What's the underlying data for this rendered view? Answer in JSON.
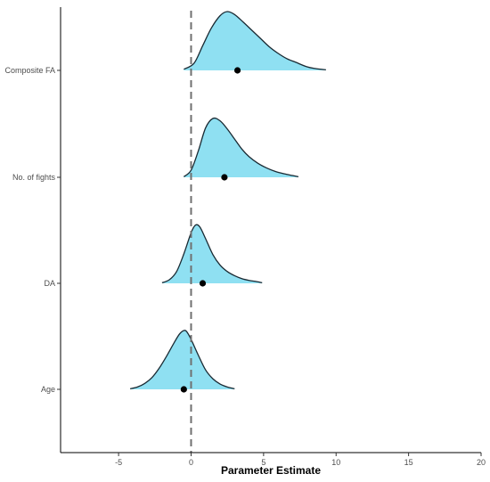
{
  "chart_data": {
    "type": "ridgeline",
    "title": "",
    "xlabel": "Parameter Estimate",
    "ylabel": "",
    "xlim": [
      -9,
      20
    ],
    "x_ticks": [
      -5,
      0,
      5,
      10,
      15,
      20
    ],
    "x_tick_labels": [
      "-5",
      "0",
      "5",
      "10",
      "15",
      "20"
    ],
    "reference_line": {
      "x": 0,
      "style": "dashed",
      "color": "#707070"
    },
    "grid": false,
    "legend": "none",
    "fill_color": "#8fe0f2",
    "outline_color": "#1a2a33",
    "point_color": "#000000",
    "series": [
      {
        "name": "Composite FA",
        "point_estimate": 3.2,
        "density": {
          "x": [
            -0.5,
            0.2,
            0.8,
            1.4,
            2.0,
            2.5,
            3.0,
            3.6,
            4.2,
            4.8,
            5.4,
            6.0,
            6.6,
            7.2,
            8.0,
            8.6,
            9.3
          ],
          "y": [
            0.02,
            0.12,
            0.42,
            0.72,
            0.93,
            1.0,
            0.95,
            0.82,
            0.68,
            0.54,
            0.4,
            0.29,
            0.2,
            0.14,
            0.06,
            0.03,
            0.01
          ]
        }
      },
      {
        "name": "No. of fights",
        "point_estimate": 2.3,
        "density": {
          "x": [
            -0.5,
            0.0,
            0.5,
            1.0,
            1.5,
            2.0,
            2.5,
            3.0,
            3.5,
            4.0,
            4.6,
            5.2,
            5.8,
            6.4,
            7.0,
            7.4
          ],
          "y": [
            0.01,
            0.12,
            0.45,
            0.84,
            1.0,
            0.96,
            0.82,
            0.65,
            0.48,
            0.35,
            0.24,
            0.16,
            0.1,
            0.06,
            0.03,
            0.01
          ]
        }
      },
      {
        "name": "DA",
        "point_estimate": 0.8,
        "density": {
          "x": [
            -2.0,
            -1.5,
            -1.0,
            -0.5,
            0.0,
            0.3,
            0.6,
            1.0,
            1.5,
            2.0,
            2.5,
            3.0,
            3.5,
            4.0,
            4.5,
            4.9
          ],
          "y": [
            0.01,
            0.06,
            0.2,
            0.5,
            0.86,
            0.99,
            0.96,
            0.76,
            0.49,
            0.31,
            0.2,
            0.13,
            0.08,
            0.05,
            0.03,
            0.01
          ]
        }
      },
      {
        "name": "Age",
        "point_estimate": -0.5,
        "density": {
          "x": [
            -4.2,
            -3.7,
            -3.2,
            -2.7,
            -2.2,
            -1.7,
            -1.2,
            -0.8,
            -0.5,
            -0.3,
            0.0,
            0.5,
            1.0,
            1.5,
            2.0,
            2.5,
            3.0
          ],
          "y": [
            0.01,
            0.04,
            0.1,
            0.2,
            0.36,
            0.56,
            0.78,
            0.94,
            1.0,
            0.98,
            0.85,
            0.58,
            0.33,
            0.18,
            0.09,
            0.04,
            0.01
          ]
        }
      }
    ]
  }
}
